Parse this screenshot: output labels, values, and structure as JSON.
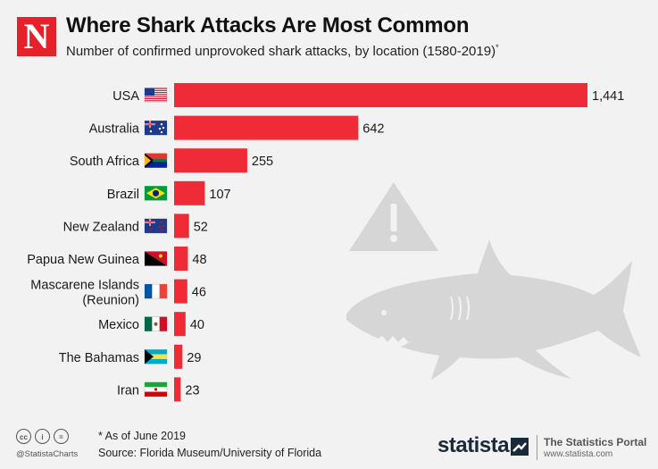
{
  "header": {
    "logo_letter": "N",
    "title": "Where Shark Attacks Are Most Common",
    "subtitle": "Number of confirmed unprovoked shark attacks, by location (1580-2019)",
    "subtitle_mark": "*"
  },
  "chart_data": {
    "type": "bar",
    "orientation": "horizontal",
    "categories": [
      "USA",
      "Australia",
      "South Africa",
      "Brazil",
      "New Zealand",
      "Papua New Guinea",
      "Mascarene Islands (Reunion)",
      "Mexico",
      "The Bahamas",
      "Iran"
    ],
    "values": [
      1441,
      642,
      255,
      107,
      52,
      48,
      46,
      40,
      29,
      23
    ],
    "value_labels": [
      "1,441",
      "642",
      "255",
      "107",
      "52",
      "48",
      "46",
      "40",
      "29",
      "23"
    ],
    "bar_color": "#ee2b36",
    "xlim": [
      0,
      1441
    ],
    "grid": false,
    "legend": "none"
  },
  "icons": [
    "us-flag-icon",
    "australia-flag-icon",
    "south-africa-flag-icon",
    "brazil-flag-icon",
    "new-zealand-flag-icon",
    "papua-new-guinea-flag-icon",
    "france-flag-icon",
    "mexico-flag-icon",
    "bahamas-flag-icon",
    "iran-flag-icon",
    "warning-triangle-icon",
    "shark-illustration"
  ],
  "footer": {
    "note": "* As of June 2019",
    "source": "Source: Florida Museum/University of Florida",
    "handle": "@StatistaCharts",
    "cc_icons": [
      "cc",
      "i",
      "="
    ],
    "brand": "statista",
    "portal_title": "The Statistics Portal",
    "portal_url": "www.statista.com"
  }
}
